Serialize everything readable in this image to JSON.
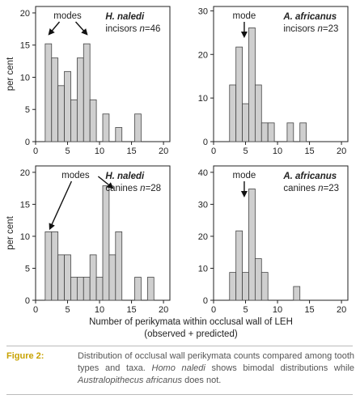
{
  "figure": {
    "shared_xlabel_line1": "Number of perikymata within occlusal wall of LEH",
    "shared_xlabel_line2": "(observed + predicted)",
    "caption_label": "Figure 2:",
    "caption_part1": "Distribution of occlusal wall perikymata counts compared among tooth types and taxa. ",
    "caption_taxon1": "Homo naledi",
    "caption_part2": " shows bimodal distributions while ",
    "caption_taxon2": "Australopithecus africanus",
    "caption_part3": " does not."
  },
  "chart_data": [
    {
      "type": "bar",
      "panel": "top-left",
      "taxon": "H. naledi",
      "tooth": "incisors",
      "n_label": "n",
      "n_value": "=46",
      "annotation": "modes",
      "ylabel": "per cent",
      "xlabel": "",
      "xlim": [
        0,
        21
      ],
      "ylim": [
        0,
        21
      ],
      "xticks": [
        0,
        5,
        10,
        15,
        20
      ],
      "yticks": [
        0,
        5,
        10,
        15,
        20
      ],
      "bin_width": 1,
      "x": [
        1,
        2,
        3,
        4,
        5,
        6,
        7,
        8,
        9,
        10,
        11,
        12,
        13,
        14,
        15,
        16,
        17,
        18,
        19,
        20
      ],
      "values": [
        0,
        15.2,
        13.0,
        8.7,
        10.9,
        6.5,
        13.0,
        15.2,
        6.5,
        0,
        4.3,
        0,
        2.2,
        0,
        0,
        4.3,
        0,
        0,
        0,
        0
      ],
      "mode_arrows_x": [
        2,
        8
      ]
    },
    {
      "type": "bar",
      "panel": "top-right",
      "taxon": "A. africanus",
      "tooth": "incisors",
      "n_label": "n",
      "n_value": "=23",
      "annotation": "mode",
      "ylabel": "",
      "xlabel": "",
      "xlim": [
        0,
        21
      ],
      "ylim": [
        0,
        31
      ],
      "xticks": [
        0,
        5,
        10,
        15,
        20
      ],
      "yticks": [
        0,
        10,
        20,
        30
      ],
      "bin_width": 1,
      "x": [
        1,
        2,
        3,
        4,
        5,
        6,
        7,
        8,
        9,
        10,
        11,
        12,
        13,
        14,
        15,
        16,
        17,
        18,
        19,
        20
      ],
      "values": [
        0,
        0,
        13.0,
        21.7,
        8.7,
        26.1,
        13.0,
        4.3,
        4.3,
        0,
        0,
        4.3,
        0,
        4.3,
        0,
        0,
        0,
        0,
        0,
        0
      ],
      "mode_arrows_x": [
        4.8
      ]
    },
    {
      "type": "bar",
      "panel": "bottom-left",
      "taxon": "H. naledi",
      "tooth": "canines",
      "n_label": "n",
      "n_value": "=28",
      "annotation": "modes",
      "ylabel": "per cent",
      "xlabel": "",
      "xlim": [
        0,
        21
      ],
      "ylim": [
        0,
        21
      ],
      "xticks": [
        0,
        5,
        10,
        15,
        20
      ],
      "yticks": [
        0,
        5,
        10,
        15,
        20
      ],
      "bin_width": 1,
      "x": [
        1,
        2,
        3,
        4,
        5,
        6,
        7,
        8,
        9,
        10,
        11,
        12,
        13,
        14,
        15,
        16,
        17,
        18,
        19,
        20
      ],
      "values": [
        0,
        10.7,
        10.7,
        7.1,
        7.1,
        3.6,
        3.6,
        3.6,
        7.1,
        3.6,
        17.9,
        7.1,
        10.7,
        0,
        0,
        3.6,
        0,
        3.6,
        0,
        0
      ],
      "mode_arrows_x": [
        2.5,
        10.5
      ]
    },
    {
      "type": "bar",
      "panel": "bottom-right",
      "taxon": "A. africanus",
      "tooth": "canines",
      "n_label": "n",
      "n_value": "=23",
      "annotation": "mode",
      "ylabel": "",
      "xlabel": "",
      "xlim": [
        0,
        21
      ],
      "ylim": [
        0,
        42
      ],
      "xticks": [
        0,
        5,
        10,
        15,
        20
      ],
      "yticks": [
        0,
        10,
        20,
        30,
        40
      ],
      "bin_width": 1,
      "x": [
        1,
        2,
        3,
        4,
        5,
        6,
        7,
        8,
        9,
        10,
        11,
        12,
        13,
        14,
        15,
        16,
        17,
        18,
        19,
        20
      ],
      "values": [
        0,
        0,
        8.7,
        21.7,
        8.7,
        34.8,
        13.0,
        8.7,
        0,
        0,
        0,
        0,
        4.3,
        0,
        0,
        0,
        0,
        0,
        0,
        0
      ],
      "mode_arrows_x": [
        4.8
      ]
    }
  ]
}
